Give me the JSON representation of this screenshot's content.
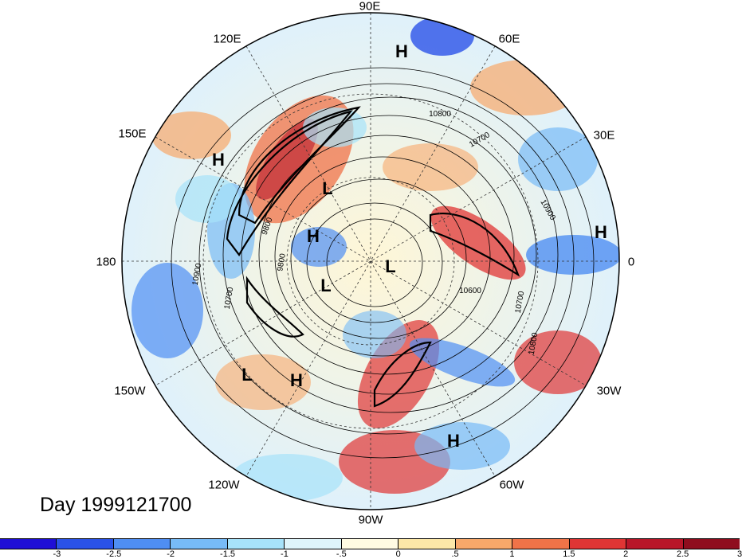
{
  "title": "Day 1999121700",
  "longitude_labels": [
    {
      "id": "90e",
      "text": "90E"
    },
    {
      "id": "60e",
      "text": "60E"
    },
    {
      "id": "30e",
      "text": "30E"
    },
    {
      "id": "0",
      "text": "0"
    },
    {
      "id": "30w",
      "text": "30W"
    },
    {
      "id": "60w",
      "text": "60W"
    },
    {
      "id": "90w",
      "text": "90W"
    },
    {
      "id": "120w",
      "text": "120W"
    },
    {
      "id": "150w",
      "text": "150W"
    },
    {
      "id": "180",
      "text": "180"
    },
    {
      "id": "150e",
      "text": "150E"
    },
    {
      "id": "120e",
      "text": "120E"
    }
  ],
  "pressure_centers": [
    {
      "label": "H"
    },
    {
      "label": "H"
    },
    {
      "label": "L"
    },
    {
      "label": "H"
    },
    {
      "label": "L"
    },
    {
      "label": "L"
    },
    {
      "label": "H"
    },
    {
      "label": "L"
    },
    {
      "label": "H"
    },
    {
      "label": "H"
    }
  ],
  "contour_labels": [
    "10800",
    "10700",
    "10900",
    "9800",
    "9800",
    "10900",
    "10700",
    "10600",
    "10700",
    "10800"
  ],
  "colorbar": {
    "colors": [
      "#1f0fd6",
      "#2a52e8",
      "#4f8ef3",
      "#77bbf7",
      "#a7e3fa",
      "#dff5fb",
      "#fffbe2",
      "#fde8a8",
      "#f8a86a",
      "#f07348",
      "#e03534",
      "#b81629",
      "#8f0d1e"
    ],
    "tick_labels": [
      "-3",
      "-2.5",
      "-2",
      "-1.5",
      "-1",
      "-.5",
      "0",
      ".5",
      "1",
      "1.5",
      "2",
      "2.5",
      "3"
    ]
  }
}
